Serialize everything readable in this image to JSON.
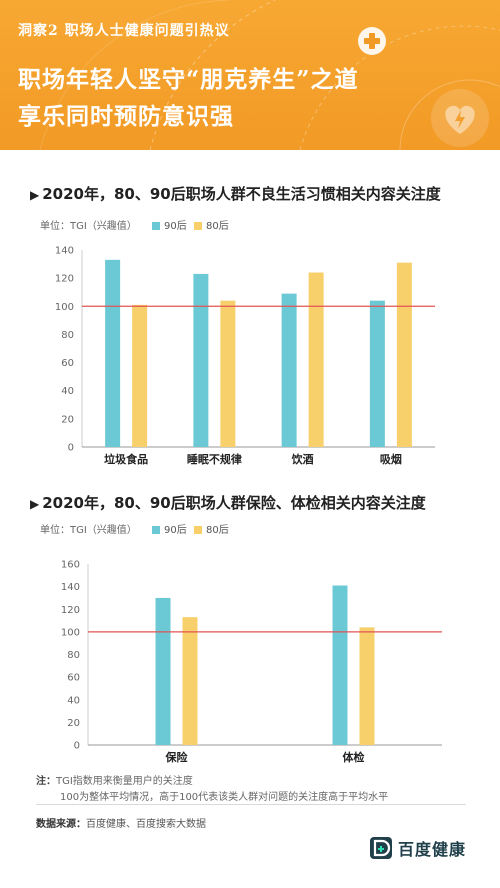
{
  "header": {
    "kicker": "洞察2  职场人士健康问题引热议",
    "title_line1": "职场年轻人坚守“朋克养生”之道",
    "title_line2": "享乐同时预防意识强"
  },
  "colors": {
    "header_bg": "#f59f2b",
    "series_90": "#6bc9d6",
    "series_80": "#f8d06b",
    "reference_line": "#e05454",
    "brand": "#1f3f4a"
  },
  "icons": [
    "cross-badge-icon",
    "heart-lightning-icon",
    "baidu-health-logo-icon"
  ],
  "chart_data": [
    {
      "type": "bar",
      "title": "2020年，80、90后职场人群不良生活习惯相关内容关注度",
      "unit_label": "单位：TGI（兴趣值）",
      "categories": [
        "垃圾食品",
        "睡眠不规律",
        "饮酒",
        "吸烟"
      ],
      "series": [
        {
          "name": "90后",
          "values": [
            133,
            123,
            109,
            104
          ]
        },
        {
          "name": "80后",
          "values": [
            101,
            104,
            124,
            131
          ]
        }
      ],
      "ylim": [
        0,
        140
      ],
      "yticks": [
        0,
        20,
        40,
        60,
        80,
        100,
        120,
        140
      ],
      "reference_line": 100,
      "legend_position": "top-left",
      "grid": false
    },
    {
      "type": "bar",
      "title": "2020年，80、90后职场人群保险、体检相关内容关注度",
      "unit_label": "单位：TGI（兴趣值）",
      "categories": [
        "保险",
        "体检"
      ],
      "series": [
        {
          "name": "90后",
          "values": [
            130,
            141
          ]
        },
        {
          "name": "80后",
          "values": [
            113,
            104
          ]
        }
      ],
      "ylim": [
        0,
        160
      ],
      "yticks": [
        0,
        20,
        40,
        60,
        80,
        100,
        120,
        140,
        160
      ],
      "reference_line": 100,
      "legend_position": "top-left",
      "grid": false
    }
  ],
  "footer": {
    "note_label": "注：",
    "note_line1": "TGI指数用来衡量用户的关注度",
    "note_line2": "100为整体平均情况，高于100代表该类人群对问题的关注度高于平均水平",
    "source_label": "数据来源：",
    "source_text": "百度健康、百度搜索大数据",
    "brand_name": "百度健康"
  }
}
